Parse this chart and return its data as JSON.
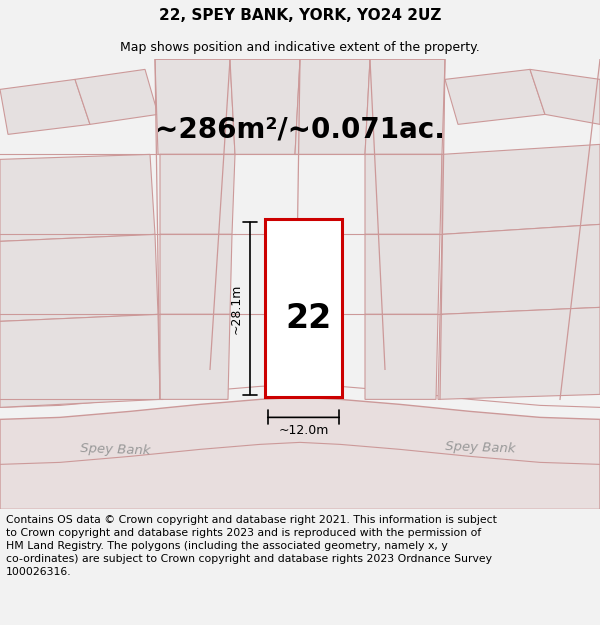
{
  "title": "22, SPEY BANK, YORK, YO24 2UZ",
  "subtitle": "Map shows position and indicative extent of the property.",
  "area_text": "~286m²/~0.071ac.",
  "plot_number": "22",
  "dim_width": "~12.0m",
  "dim_height": "~28.1m",
  "road_label_left": "Spey Bank",
  "road_label_right": "Spey Bank",
  "footer": "Contains OS data © Crown copyright and database right 2021. This information is subject\nto Crown copyright and database rights 2023 and is reproduced with the permission of\nHM Land Registry. The polygons (including the associated geometry, namely x, y\nco-ordinates) are subject to Crown copyright and database rights 2023 Ordnance Survey\n100026316.",
  "bg_color": "#f2f2f2",
  "map_bg": "#eeebeb",
  "plot_fill": "#ffffff",
  "plot_border": "#cc0000",
  "road_fill": "#e8dede",
  "road_edge": "#cc9999",
  "parcel_fill": "#e5e0e0",
  "parcel_edge": "#cc9999",
  "footer_fontsize": 7.8,
  "title_fontsize": 11,
  "subtitle_fontsize": 9,
  "area_fontsize": 20
}
